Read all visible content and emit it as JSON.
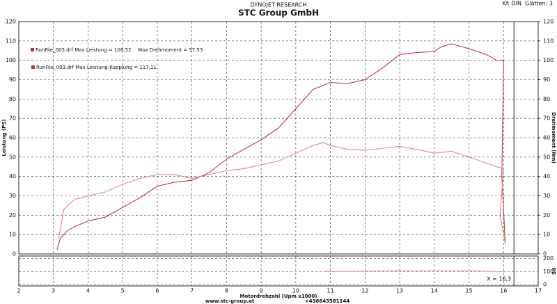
{
  "chart_data": [
    {
      "type": "line",
      "subtitle": "DYNOJET RESEARCH",
      "title": "STC Group GmbH",
      "settings": "Kf: DIN  Glätten: 3",
      "legend": [
        "RunFile_003.drf Max Leistung = 108,52",
        "Max Drehmoment = 57,53",
        "RunFile_003.drf Max Leistung-Kupplung = 117,11"
      ],
      "x_label": "Motordrehzahl (Upm x1000)",
      "y_label": "Leistung (PS)",
      "y2_label": "Drehmoment (Nm)",
      "xlim": [
        2,
        17
      ],
      "xticks": [
        2,
        3,
        4,
        5,
        6,
        7,
        8,
        9,
        10,
        11,
        12,
        13,
        14,
        15,
        16,
        17
      ],
      "ylim": [
        0,
        120
      ],
      "yticks": [
        0,
        10,
        20,
        30,
        40,
        50,
        60,
        70,
        80,
        90,
        100,
        110,
        120
      ],
      "y2lim": [
        0,
        120
      ],
      "y2ticks": [
        0,
        10,
        20,
        30,
        40,
        50,
        60,
        70,
        80,
        90,
        100,
        110,
        120
      ],
      "grid": true,
      "cursor": {
        "value": 16.3,
        "label": "X = 16,3"
      },
      "series": [
        {
          "color": "#b3262a",
          "x": [
            3.1,
            3.2,
            3.4,
            3.6,
            4,
            4.5,
            5,
            5.5,
            6,
            6.5,
            7,
            7.5,
            8,
            8.5,
            9,
            9.5,
            10,
            10.5,
            11,
            11.5,
            12,
            12.5,
            13,
            13.5,
            14,
            14.2,
            14.5,
            15,
            15.5,
            15.8,
            16,
            15.95,
            16.05
          ],
          "values": [
            2,
            8,
            12,
            14,
            17,
            19,
            24,
            29,
            35,
            37,
            38,
            42,
            49,
            54,
            59,
            65,
            75,
            85,
            88.5,
            88,
            90,
            96,
            103,
            104,
            104.5,
            107,
            108.5,
            106,
            103,
            100,
            100,
            40,
            5
          ]
        },
        {
          "color": "#e07a78",
          "axis": "y2",
          "x": [
            3.15,
            3.3,
            3.6,
            4,
            4.5,
            5,
            5.5,
            6,
            6.5,
            7,
            7.5,
            8,
            8.5,
            9,
            9.5,
            10,
            10.5,
            10.8,
            11,
            11.5,
            12,
            12.5,
            13,
            13.5,
            14,
            14.5,
            15,
            15.5,
            15.8,
            16,
            15.9,
            16.05
          ],
          "values": [
            8,
            23,
            28,
            30,
            32,
            36,
            39,
            41,
            41,
            39,
            41,
            43,
            44,
            46,
            48,
            52,
            56,
            57.5,
            56,
            54,
            53.5,
            54.5,
            55.5,
            54,
            52,
            53,
            50,
            47,
            45,
            44,
            20,
            5
          ]
        }
      ]
    },
    {
      "type": "line",
      "y_label": "PS",
      "xlim": [
        2,
        17
      ],
      "ylim": [
        0,
        220
      ],
      "yticks": [
        0,
        100,
        200
      ],
      "series": [
        {
          "color": "#e08a88",
          "x": [
            10.8,
            12,
            13,
            14,
            15,
            16
          ],
          "values": [
            100,
            103,
            106,
            106,
            105,
            100
          ]
        }
      ]
    }
  ],
  "footer": {
    "website": "www.stc-group.at",
    "phone": "+436643581144"
  }
}
